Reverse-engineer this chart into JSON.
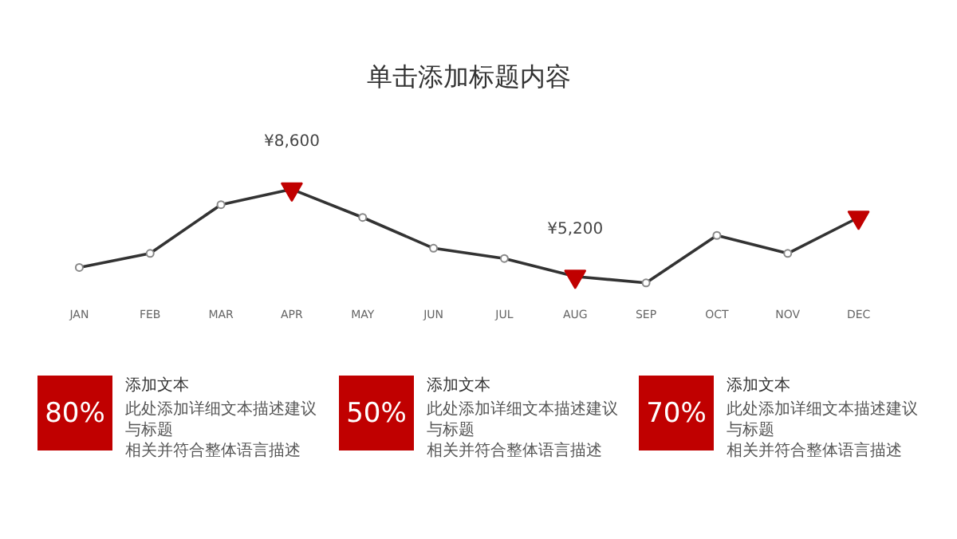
{
  "chart_data": [
    {
      "type": "line",
      "title": "单击添加标题内容",
      "categories": [
        "JAN",
        "FEB",
        "MAR",
        "APR",
        "MAY",
        "JUN",
        "JUL",
        "AUG",
        "SEP",
        "OCT",
        "NOV",
        "DEC"
      ],
      "tick_labels": "x",
      "grid": false,
      "marker": "circle",
      "line_style": "solid",
      "series": [
        {
          "color": "#333333",
          "values": [
            5550,
            6100,
            8000,
            8600,
            7500,
            6300,
            5900,
            5200,
            4950,
            6800,
            6100,
            7500
          ],
          "value_labels": [
            null,
            null,
            null,
            "¥8,600",
            null,
            null,
            null,
            "¥5,200",
            null,
            null,
            null,
            null
          ]
        },
        {
          "type": "scatter",
          "marker": "triangle",
          "color": "#c00000",
          "values": [
            null,
            null,
            null,
            8600,
            null,
            null,
            null,
            5200,
            null,
            null,
            null,
            7500
          ]
        }
      ]
    },
    {
      "type": "other",
      "title": "添加文本",
      "color": "#c00000",
      "annotations": [
        "80%",
        "此处添加详细文本描述建议与标题",
        "相关并符合整体语言描述"
      ]
    },
    {
      "type": "other",
      "title": "添加文本",
      "color": "#c00000",
      "annotations": [
        "50%",
        "此处添加详细文本描述建议与标题",
        "相关并符合整体语言描述"
      ]
    },
    {
      "type": "other",
      "title": "添加文本",
      "color": "#c00000",
      "annotations": [
        "70%",
        "此处添加详细文本描述建议与标题",
        "相关并符合整体语言描述"
      ]
    }
  ]
}
